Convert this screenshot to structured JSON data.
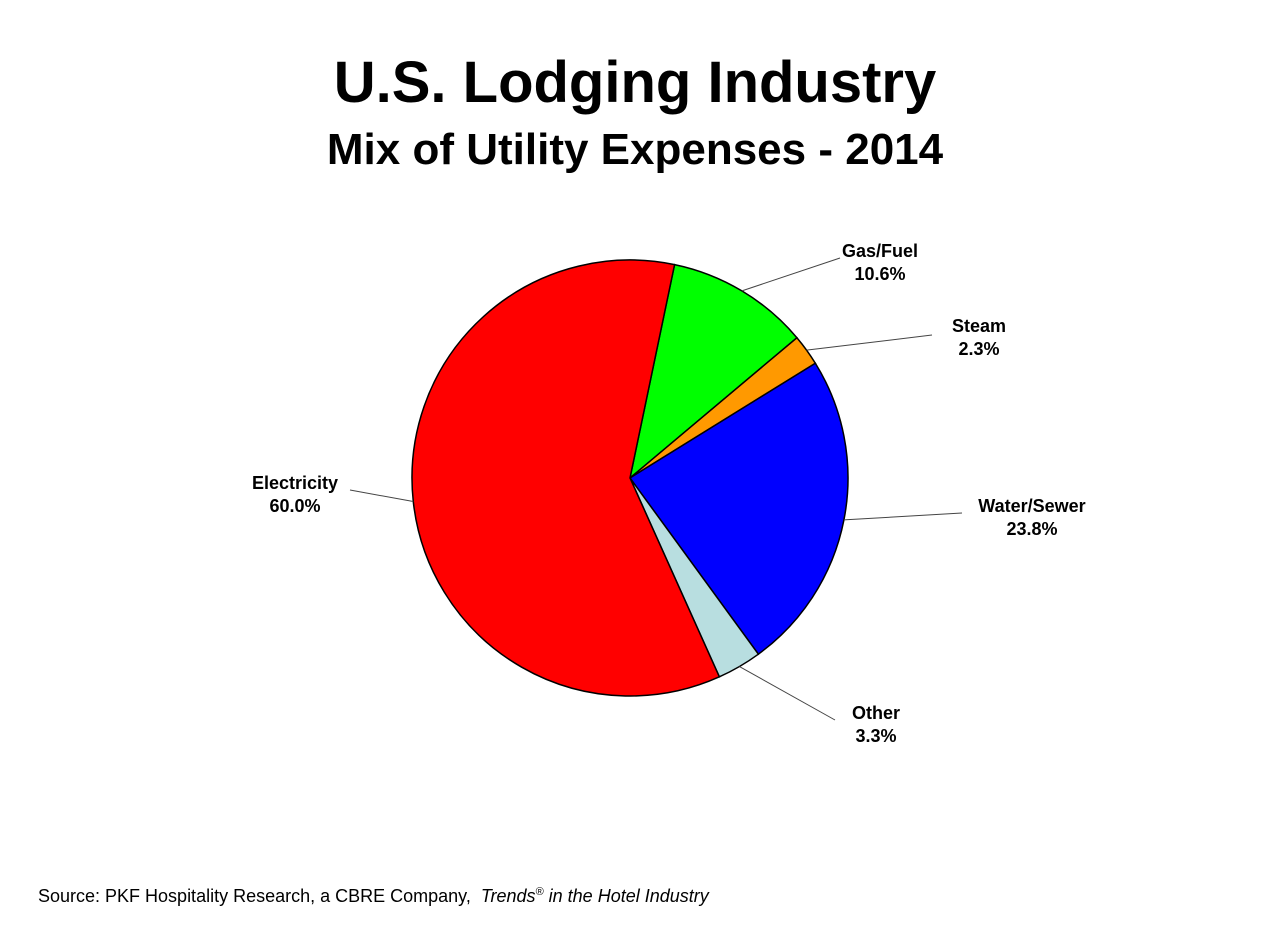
{
  "chart_data": {
    "type": "pie",
    "title": "U.S. Lodging Industry",
    "subtitle": "Mix of Utility Expenses - 2014",
    "slices": [
      {
        "label": "Gas/Fuel",
        "value": 10.6,
        "display": "10.6%",
        "color": "#00FF00"
      },
      {
        "label": "Steam",
        "value": 2.3,
        "display": "2.3%",
        "color": "#FF9900"
      },
      {
        "label": "Water/Sewer",
        "value": 23.8,
        "display": "23.8%",
        "color": "#0000FF"
      },
      {
        "label": "Other",
        "value": 3.3,
        "display": "3.3%",
        "color": "#B8DEE0"
      },
      {
        "label": "Electricity",
        "value": 60.0,
        "display": "60.0%",
        "color": "#FF0000"
      }
    ]
  },
  "source": {
    "prefix": "Source: PKF Hospitality Research, a CBRE Company,",
    "italic_title": "Trends",
    "registered": "®",
    "italic_suffix": " in the Hotel Industry"
  }
}
